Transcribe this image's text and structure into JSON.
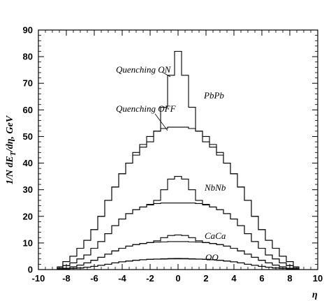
{
  "chart_data": {
    "type": "line",
    "xlabel": "η",
    "ylabel": "1/N dE_T/dη, GeV",
    "ylabel_main": "1/N dE",
    "ylabel_sub": "T",
    "ylabel_rest": "/dη, GeV",
    "xlim": [
      -10,
      10
    ],
    "ylim": [
      0,
      90
    ],
    "xticks": [
      -10,
      -8,
      -6,
      -4,
      -2,
      0,
      2,
      4,
      6,
      8,
      10
    ],
    "yticks": [
      0,
      10,
      20,
      30,
      40,
      50,
      60,
      70,
      80,
      90
    ],
    "x": [
      -8.8,
      -8.5,
      -8.0,
      -7.5,
      -7.0,
      -6.5,
      -6.0,
      -5.5,
      -5.0,
      -4.5,
      -4.0,
      -3.5,
      -3.0,
      -2.5,
      -2.0,
      -1.5,
      -1.0,
      -0.5,
      0.0,
      0.5,
      1.0,
      1.5,
      2.0,
      2.5,
      3.0,
      3.5,
      4.0,
      4.5,
      5.0,
      5.5,
      6.0,
      6.5,
      7.0,
      7.5,
      8.0,
      8.5,
      8.8
    ],
    "series": [
      {
        "name": "PbPb",
        "label": "Quenching ON",
        "values": [
          0,
          1,
          3,
          5,
          8,
          11,
          15,
          20,
          26,
          31,
          36,
          40,
          43,
          46,
          48,
          52,
          61,
          73,
          82,
          73,
          61,
          52,
          48,
          46,
          43,
          40,
          36,
          31,
          26,
          20,
          15,
          11,
          8,
          5,
          3,
          1,
          0
        ]
      },
      {
        "name": "PbPb",
        "label": "Quenching OFF",
        "values": [
          0,
          1,
          3,
          5,
          8,
          11,
          15,
          20,
          26,
          31,
          36,
          40,
          44,
          47,
          50,
          52,
          53,
          53.5,
          53.5,
          53.5,
          53,
          52,
          50,
          47,
          44,
          40,
          36,
          31,
          26,
          20,
          15,
          11,
          8,
          5,
          3,
          1,
          0
        ]
      },
      {
        "name": "NbNb",
        "label": "Quenching ON",
        "values": [
          0,
          0.5,
          1.5,
          2.5,
          4,
          5.5,
          8,
          10.5,
          13.5,
          16.5,
          19,
          21,
          22.5,
          23.5,
          24.5,
          26,
          30,
          34,
          35,
          34,
          30,
          26,
          24.5,
          23.5,
          22.5,
          21,
          19,
          16.5,
          13.5,
          10.5,
          8,
          5.5,
          4,
          2.5,
          1.5,
          0.5,
          0
        ]
      },
      {
        "name": "NbNb",
        "label": "Quenching OFF",
        "values": [
          0,
          0.5,
          1.5,
          2.5,
          4,
          5.5,
          8,
          10.5,
          13.5,
          16.5,
          19,
          21,
          22.5,
          23.5,
          24.3,
          24.8,
          25,
          25,
          25,
          25,
          25,
          24.8,
          24.3,
          23.5,
          22.5,
          21,
          19,
          16.5,
          13.5,
          10.5,
          8,
          5.5,
          4,
          2.5,
          1.5,
          0.5,
          0
        ]
      },
      {
        "name": "CaCa",
        "label": "Quenching ON",
        "values": [
          0,
          0.2,
          0.5,
          1,
          1.7,
          2.5,
          3.5,
          4.6,
          5.8,
          7,
          8,
          8.8,
          9.4,
          9.8,
          10.2,
          10.8,
          12,
          12.8,
          13,
          12.8,
          12,
          10.8,
          10.2,
          9.8,
          9.4,
          8.8,
          8,
          7,
          5.8,
          4.6,
          3.5,
          2.5,
          1.7,
          1,
          0.5,
          0.2,
          0
        ]
      },
      {
        "name": "CaCa",
        "label": "Quenching OFF",
        "values": [
          0,
          0.2,
          0.5,
          1,
          1.7,
          2.5,
          3.5,
          4.6,
          5.8,
          7,
          8,
          8.8,
          9.4,
          9.8,
          10.1,
          10.3,
          10.4,
          10.5,
          10.5,
          10.5,
          10.4,
          10.3,
          10.1,
          9.8,
          9.4,
          8.8,
          8,
          7,
          5.8,
          4.6,
          3.5,
          2.5,
          1.7,
          1,
          0.5,
          0.2,
          0
        ]
      },
      {
        "name": "OO",
        "label": "Quenching ON",
        "values": [
          0,
          0,
          0.2,
          0.4,
          0.6,
          0.9,
          1.2,
          1.6,
          2,
          2.5,
          2.9,
          3.2,
          3.5,
          3.7,
          3.85,
          3.95,
          4.05,
          4.15,
          4.2,
          4.15,
          4.05,
          3.95,
          3.85,
          3.7,
          3.5,
          3.2,
          2.9,
          2.5,
          2,
          1.6,
          1.2,
          0.9,
          0.6,
          0.4,
          0.2,
          0,
          0
        ]
      },
      {
        "name": "OO",
        "label": "Quenching OFF",
        "values": [
          0,
          0,
          0.2,
          0.4,
          0.6,
          0.9,
          1.2,
          1.6,
          2,
          2.5,
          2.9,
          3.2,
          3.5,
          3.7,
          3.85,
          3.9,
          3.95,
          4.0,
          4.0,
          4.0,
          3.95,
          3.9,
          3.85,
          3.7,
          3.5,
          3.2,
          2.9,
          2.5,
          2,
          1.6,
          1.2,
          0.9,
          0.6,
          0.4,
          0.2,
          0,
          0
        ]
      }
    ],
    "annotations": [
      {
        "text": "Quenching ON",
        "target_series": 0
      },
      {
        "text": "Quenching OFF",
        "target_series": 1
      },
      {
        "text": "PbPb"
      },
      {
        "text": "NbNb"
      },
      {
        "text": "CaCa"
      },
      {
        "text": "OO"
      }
    ],
    "grid": false,
    "legend": "none"
  },
  "colors": {
    "line": "#000000",
    "background": "#ffffff"
  }
}
